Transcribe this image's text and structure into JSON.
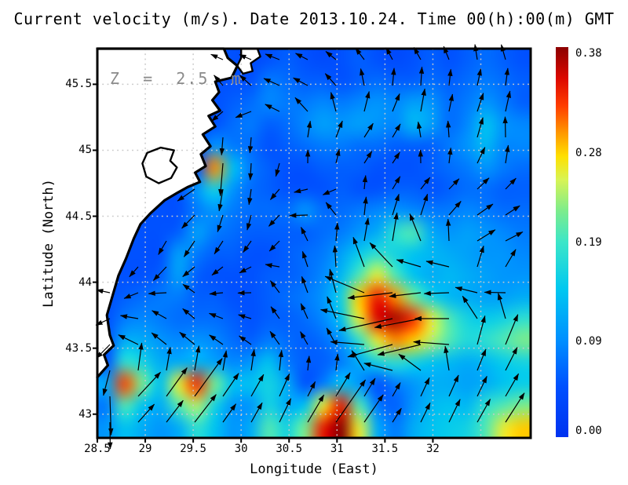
{
  "title": "Current velocity (m/s). Date 2013.10.24. Time 00(h):00(m) GMT",
  "depth_label": "Z  =  2.5  m",
  "axes": {
    "xlabel": "Longitude (East)",
    "ylabel": "Latitude (North)",
    "xticks": [
      {
        "label": "28.5",
        "value": 28.5
      },
      {
        "label": "29",
        "value": 29
      },
      {
        "label": "29.5",
        "value": 29.5
      },
      {
        "label": "30",
        "value": 30
      },
      {
        "label": "30.5",
        "value": 30.5
      },
      {
        "label": "31",
        "value": 31
      },
      {
        "label": "31.5",
        "value": 31.5
      },
      {
        "label": "32",
        "value": 32
      }
    ],
    "yticks": [
      {
        "label": "45.5",
        "value": 45.5
      },
      {
        "label": "45",
        "value": 45
      },
      {
        "label": "44.5",
        "value": 44.5
      },
      {
        "label": "44",
        "value": 44
      },
      {
        "label": "43.5",
        "value": 43.5
      },
      {
        "label": "43",
        "value": 43
      }
    ],
    "extra_gridlines_x": [
      32.5
    ]
  },
  "colorbar": {
    "min": 0,
    "max": 0.38,
    "units": "m/s",
    "ticks": [
      {
        "label": "0.38",
        "value": 0.38
      },
      {
        "label": "0.28",
        "value": 0.28
      },
      {
        "label": "0.19",
        "value": 0.19
      },
      {
        "label": "0.09",
        "value": 0.09
      },
      {
        "label": "0.00",
        "value": 0
      }
    ],
    "stops": [
      [
        0,
        "#0032F0"
      ],
      [
        0.13,
        "#0050FF"
      ],
      [
        0.25,
        "#0090FF"
      ],
      [
        0.38,
        "#00C8F0"
      ],
      [
        0.5,
        "#3CE6C8"
      ],
      [
        0.58,
        "#7CEC8C"
      ],
      [
        0.66,
        "#D8F455"
      ],
      [
        0.72,
        "#FFE000"
      ],
      [
        0.78,
        "#FF9800"
      ],
      [
        0.85,
        "#FF3C00"
      ],
      [
        0.92,
        "#DC0800"
      ],
      [
        1,
        "#8C0000"
      ]
    ]
  },
  "chart_data": {
    "type": "heatmap",
    "subtype": "velocity-field-with-quiver",
    "title": "Current velocity (m/s). Date 2013.10.24. Time 00(h):00(m) GMT",
    "depth_label": "Z = 2.5 m",
    "xlabel": "Longitude (East)",
    "ylabel": "Latitude (North)",
    "xlim": [
      28.5,
      33.02
    ],
    "ylim": [
      42.82,
      45.77
    ],
    "grid": "dotted 0.5 degree graticule",
    "legend_position": "right colorbar",
    "speed_grid": {
      "comment": "surface current speed, value*scale = m/s, -1 = land mask; rows north to south over ylim, cols west to east over xlim",
      "cols": 24,
      "rows": 18,
      "scale": 0.01,
      "land": -1,
      "values": [
        [
          -1,
          -1,
          -1,
          -1,
          -1,
          -1,
          -1,
          5,
          4,
          5,
          6,
          5,
          4,
          5,
          6,
          5,
          4,
          5,
          6,
          5,
          6,
          7,
          6,
          5
        ],
        [
          -1,
          -1,
          -1,
          -1,
          -1,
          -1,
          -1,
          5,
          5,
          8,
          7,
          6,
          6,
          5,
          6,
          7,
          6,
          6,
          7,
          6,
          7,
          8,
          7,
          6
        ],
        [
          -1,
          -1,
          -1,
          -1,
          -1,
          -1,
          -1,
          6,
          7,
          9,
          8,
          8,
          9,
          8,
          9,
          10,
          9,
          11,
          10,
          7,
          8,
          10,
          8,
          6
        ],
        [
          -1,
          -1,
          -1,
          -1,
          -1,
          -1,
          5,
          7,
          8,
          6,
          7,
          9,
          11,
          10,
          11,
          10,
          9,
          13,
          11,
          7,
          9,
          14,
          10,
          9
        ],
        [
          -1,
          -1,
          -1,
          -1,
          -1,
          -1,
          10,
          8,
          7,
          5,
          6,
          7,
          8,
          8,
          7,
          7,
          6,
          6,
          6,
          8,
          10,
          13,
          9,
          9
        ],
        [
          -1,
          -1,
          -1,
          -1,
          -1,
          -1,
          30,
          14,
          8,
          6,
          5,
          5,
          6,
          6,
          6,
          5,
          5,
          5,
          6,
          7,
          8,
          10,
          8,
          7
        ],
        [
          -1,
          -1,
          -1,
          -1,
          -1,
          10,
          16,
          10,
          7,
          6,
          5,
          5,
          5,
          6,
          5,
          5,
          6,
          6,
          5,
          6,
          7,
          7,
          6,
          6
        ],
        [
          -1,
          -1,
          -1,
          -1,
          -1,
          8,
          10,
          8,
          7,
          7,
          7,
          10,
          7,
          7,
          8,
          9,
          10,
          9,
          8,
          8,
          9,
          8,
          7,
          7
        ],
        [
          -1,
          -1,
          -1,
          -1,
          6,
          11,
          8,
          7,
          6,
          6,
          6,
          6,
          7,
          8,
          10,
          12,
          18,
          20,
          12,
          10,
          11,
          10,
          9,
          8
        ],
        [
          -1,
          -1,
          -1,
          5,
          11,
          8,
          6,
          6,
          5,
          5,
          6,
          7,
          8,
          11,
          15,
          18,
          16,
          14,
          13,
          12,
          11,
          10,
          10,
          9
        ],
        [
          -1,
          -1,
          5,
          6,
          11,
          6,
          5,
          5,
          5,
          6,
          6,
          7,
          9,
          13,
          20,
          26,
          20,
          14,
          12,
          13,
          12,
          11,
          10,
          10
        ],
        [
          -1,
          6,
          7,
          8,
          8,
          6,
          6,
          5,
          5,
          6,
          7,
          8,
          10,
          16,
          28,
          34,
          30,
          22,
          16,
          13,
          12,
          11,
          11,
          12
        ],
        [
          -1,
          8,
          9,
          8,
          7,
          7,
          7,
          6,
          5,
          6,
          6,
          7,
          9,
          14,
          26,
          35,
          37,
          33,
          26,
          20,
          16,
          15,
          16,
          18
        ],
        [
          -1,
          12,
          12,
          10,
          9,
          10,
          9,
          7,
          6,
          8,
          7,
          6,
          7,
          10,
          18,
          26,
          30,
          28,
          24,
          20,
          17,
          18,
          20,
          22
        ],
        [
          -1,
          18,
          16,
          12,
          12,
          13,
          11,
          9,
          10,
          14,
          8,
          6,
          6,
          8,
          12,
          16,
          18,
          16,
          14,
          13,
          12,
          13,
          15,
          16
        ],
        [
          12,
          32,
          22,
          14,
          26,
          33,
          22,
          14,
          14,
          16,
          12,
          5,
          8,
          14,
          10,
          5,
          8,
          10,
          12,
          12,
          11,
          12,
          14,
          15
        ],
        [
          8,
          20,
          14,
          12,
          20,
          24,
          16,
          10,
          10,
          16,
          12,
          14,
          26,
          34,
          20,
          8,
          6,
          10,
          13,
          14,
          13,
          18,
          20,
          22
        ],
        [
          10,
          14,
          12,
          10,
          12,
          18,
          14,
          10,
          12,
          20,
          16,
          22,
          34,
          38,
          26,
          12,
          8,
          12,
          14,
          15,
          16,
          20,
          26,
          28
        ]
      ]
    },
    "quiver": {
      "comment": "coarse u,v current components, value*scale = m/s; rows north to south",
      "cols": 10,
      "rows": 9,
      "scale": 0.01,
      "lon0": 28.5,
      "lon1": 33.0,
      "lat0": 45.75,
      "lat1": 42.79,
      "u": [
        [
          0,
          0,
          0,
          -4,
          -5,
          -4,
          -3,
          -5,
          -2,
          -4
        ],
        [
          0,
          0,
          0,
          -3,
          -6,
          -2,
          2,
          3,
          4,
          2
        ],
        [
          0,
          0,
          0,
          -1,
          2,
          3,
          4,
          -4,
          3,
          -5
        ],
        [
          0,
          0,
          -4,
          -2,
          -6,
          -5,
          3,
          5,
          8,
          4
        ],
        [
          0,
          -3,
          -5,
          -4,
          -3,
          2,
          4,
          -6,
          9,
          5
        ],
        [
          -4,
          -4,
          -3,
          -5,
          -4,
          -5,
          -24,
          -16,
          -8,
          -6
        ],
        [
          -5,
          -8,
          -10,
          -4,
          -3,
          -8,
          -28,
          -18,
          4,
          5
        ],
        [
          -3,
          10,
          13,
          5,
          4,
          10,
          6,
          6,
          8,
          10
        ],
        [
          -3,
          8,
          10,
          3,
          6,
          18,
          10,
          5,
          12,
          14
        ]
      ],
      "v": [
        [
          0,
          0,
          0,
          1,
          2,
          3,
          4,
          5,
          7,
          6
        ],
        [
          0,
          0,
          0,
          5,
          2,
          3,
          5,
          13,
          11,
          9
        ],
        [
          0,
          0,
          0,
          -26,
          6,
          5,
          4,
          3,
          10,
          4
        ],
        [
          0,
          0,
          -2,
          -20,
          -2,
          -3,
          6,
          4,
          6,
          3
        ],
        [
          0,
          -6,
          -8,
          -4,
          -3,
          15,
          20,
          2,
          5,
          2
        ],
        [
          2,
          -2,
          3,
          -2,
          8,
          18,
          -4,
          -2,
          2,
          -2
        ],
        [
          -10,
          6,
          8,
          2,
          5,
          14,
          -8,
          -4,
          10,
          12
        ],
        [
          -22,
          14,
          18,
          8,
          10,
          17,
          10,
          14,
          17,
          15
        ],
        [
          -8,
          10,
          12,
          5,
          12,
          24,
          14,
          12,
          19,
          19
        ]
      ]
    },
    "coastline": {
      "comment": "western Black Sea coast, lon/lat polylines; main polygon closes along plot left edge",
      "main": [
        [
          28.5,
          45.77
        ],
        [
          29.82,
          45.77
        ],
        [
          29.86,
          45.7
        ],
        [
          29.96,
          45.64
        ],
        [
          29.9,
          45.55
        ],
        [
          29.73,
          45.52
        ],
        [
          29.77,
          45.44
        ],
        [
          29.7,
          45.38
        ],
        [
          29.78,
          45.3
        ],
        [
          29.66,
          45.26
        ],
        [
          29.73,
          45.18
        ],
        [
          29.6,
          45.12
        ],
        [
          29.68,
          45.03
        ],
        [
          29.58,
          44.97
        ],
        [
          29.63,
          44.88
        ],
        [
          29.52,
          44.83
        ],
        [
          29.57,
          44.76
        ],
        [
          29.44,
          44.72
        ],
        [
          29.34,
          44.68
        ],
        [
          29.2,
          44.62
        ],
        [
          29.05,
          44.52
        ],
        [
          28.95,
          44.44
        ],
        [
          28.88,
          44.33
        ],
        [
          28.8,
          44.18
        ],
        [
          28.72,
          44.05
        ],
        [
          28.66,
          43.9
        ],
        [
          28.6,
          43.75
        ],
        [
          28.63,
          43.6
        ],
        [
          28.67,
          43.52
        ],
        [
          28.57,
          43.45
        ],
        [
          28.61,
          43.37
        ],
        [
          28.5,
          43.28
        ]
      ],
      "lagoon": [
        [
          29.16,
          45.02
        ],
        [
          29.3,
          45.0
        ],
        [
          29.26,
          44.92
        ],
        [
          29.33,
          44.87
        ],
        [
          29.27,
          44.79
        ],
        [
          29.14,
          44.75
        ],
        [
          29.01,
          44.8
        ],
        [
          28.97,
          44.9
        ],
        [
          29.02,
          44.98
        ],
        [
          29.16,
          45.02
        ]
      ],
      "island": [
        [
          30.0,
          45.77
        ],
        [
          30.17,
          45.77
        ],
        [
          30.2,
          45.71
        ],
        [
          30.1,
          45.66
        ],
        [
          30.12,
          45.6
        ],
        [
          30.02,
          45.58
        ],
        [
          29.96,
          45.64
        ],
        [
          30.0,
          45.7
        ]
      ]
    }
  }
}
